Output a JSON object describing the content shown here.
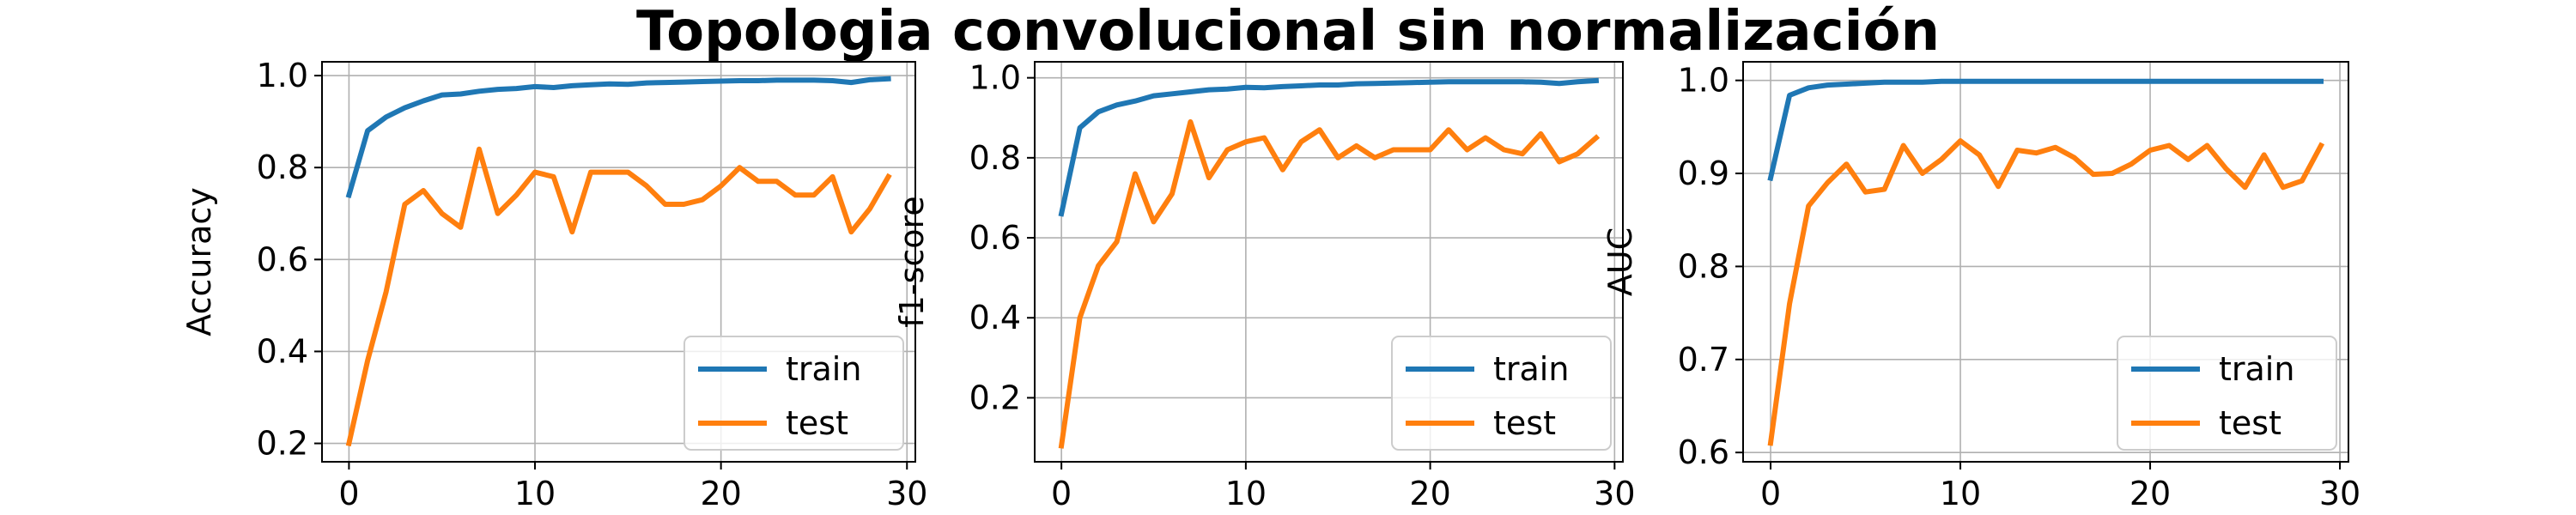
{
  "suptitle": "Topologia convolucional sin normalización",
  "colors": {
    "train": "#1f77b4",
    "test": "#ff7f0e",
    "grid": "#b0b0b0",
    "axis": "#000000"
  },
  "chart_data": [
    {
      "type": "line",
      "ylabel": "Accuracy",
      "xlim": [
        -1.45,
        30.45
      ],
      "ylim": [
        0.16,
        1.03
      ],
      "xticks": [
        0,
        10,
        20,
        30
      ],
      "yticks": [
        0.2,
        0.4,
        0.6,
        0.8,
        1.0
      ],
      "ytick_labels": [
        "0.2",
        "0.4",
        "0.6",
        "0.8",
        "1.0"
      ],
      "grid": true,
      "legend": {
        "position": "lower right",
        "entries": [
          "train",
          "test"
        ]
      },
      "x": [
        0,
        1,
        2,
        3,
        4,
        5,
        6,
        7,
        8,
        9,
        10,
        11,
        12,
        13,
        14,
        15,
        16,
        17,
        18,
        19,
        20,
        21,
        22,
        23,
        24,
        25,
        26,
        27,
        28,
        29
      ],
      "series": [
        {
          "name": "train",
          "color": "#1f77b4",
          "values": [
            0.74,
            0.88,
            0.91,
            0.93,
            0.945,
            0.958,
            0.96,
            0.966,
            0.97,
            0.972,
            0.976,
            0.974,
            0.978,
            0.98,
            0.982,
            0.981,
            0.984,
            0.985,
            0.986,
            0.987,
            0.988,
            0.989,
            0.989,
            0.99,
            0.99,
            0.99,
            0.989,
            0.985,
            0.991,
            0.993
          ]
        },
        {
          "name": "test",
          "color": "#ff7f0e",
          "values": [
            0.2,
            0.38,
            0.53,
            0.72,
            0.75,
            0.7,
            0.67,
            0.84,
            0.7,
            0.74,
            0.79,
            0.78,
            0.66,
            0.79,
            0.79,
            0.79,
            0.76,
            0.72,
            0.72,
            0.73,
            0.76,
            0.8,
            0.77,
            0.77,
            0.74,
            0.74,
            0.78,
            0.66,
            0.71,
            0.78
          ]
        }
      ]
    },
    {
      "type": "line",
      "ylabel": "f1-score",
      "xlim": [
        -1.45,
        30.45
      ],
      "ylim": [
        0.04,
        1.04
      ],
      "xticks": [
        0,
        10,
        20,
        30
      ],
      "yticks": [
        0.2,
        0.4,
        0.6,
        0.8,
        1.0
      ],
      "ytick_labels": [
        "0.2",
        "0.4",
        "0.6",
        "0.8",
        "1.0"
      ],
      "grid": true,
      "legend": {
        "position": "lower right",
        "entries": [
          "train",
          "test"
        ]
      },
      "x": [
        0,
        1,
        2,
        3,
        4,
        5,
        6,
        7,
        8,
        9,
        10,
        11,
        12,
        13,
        14,
        15,
        16,
        17,
        18,
        19,
        20,
        21,
        22,
        23,
        24,
        25,
        26,
        27,
        28,
        29
      ],
      "series": [
        {
          "name": "train",
          "color": "#1f77b4",
          "values": [
            0.66,
            0.875,
            0.915,
            0.932,
            0.942,
            0.955,
            0.96,
            0.965,
            0.97,
            0.972,
            0.976,
            0.975,
            0.978,
            0.98,
            0.982,
            0.982,
            0.985,
            0.986,
            0.987,
            0.988,
            0.989,
            0.99,
            0.99,
            0.99,
            0.99,
            0.99,
            0.989,
            0.986,
            0.99,
            0.993
          ]
        },
        {
          "name": "test",
          "color": "#ff7f0e",
          "values": [
            0.08,
            0.4,
            0.53,
            0.59,
            0.76,
            0.64,
            0.71,
            0.89,
            0.75,
            0.82,
            0.84,
            0.85,
            0.77,
            0.84,
            0.87,
            0.8,
            0.83,
            0.8,
            0.82,
            0.82,
            0.82,
            0.87,
            0.82,
            0.85,
            0.82,
            0.81,
            0.86,
            0.79,
            0.81,
            0.85
          ]
        }
      ]
    },
    {
      "type": "line",
      "ylabel": "AUC",
      "xlim": [
        -1.45,
        30.45
      ],
      "ylim": [
        0.59,
        1.02
      ],
      "xticks": [
        0,
        10,
        20,
        30
      ],
      "yticks": [
        0.6,
        0.7,
        0.8,
        0.9,
        1.0
      ],
      "ytick_labels": [
        "0.6",
        "0.7",
        "0.8",
        "0.9",
        "1.0"
      ],
      "grid": true,
      "legend": {
        "position": "lower right",
        "entries": [
          "train",
          "test"
        ]
      },
      "x": [
        0,
        1,
        2,
        3,
        4,
        5,
        6,
        7,
        8,
        9,
        10,
        11,
        12,
        13,
        14,
        15,
        16,
        17,
        18,
        19,
        20,
        21,
        22,
        23,
        24,
        25,
        26,
        27,
        28,
        29
      ],
      "series": [
        {
          "name": "train",
          "color": "#1f77b4",
          "values": [
            0.895,
            0.984,
            0.992,
            0.995,
            0.996,
            0.997,
            0.998,
            0.998,
            0.998,
            0.999,
            0.999,
            0.999,
            0.999,
            0.999,
            0.999,
            0.999,
            0.999,
            0.999,
            0.999,
            0.999,
            0.999,
            0.999,
            0.999,
            0.999,
            0.999,
            0.999,
            0.999,
            0.999,
            0.999,
            0.999
          ]
        },
        {
          "name": "test",
          "color": "#ff7f0e",
          "values": [
            0.61,
            0.76,
            0.865,
            0.89,
            0.91,
            0.88,
            0.883,
            0.93,
            0.9,
            0.915,
            0.935,
            0.92,
            0.886,
            0.925,
            0.922,
            0.928,
            0.917,
            0.899,
            0.9,
            0.91,
            0.925,
            0.93,
            0.915,
            0.93,
            0.905,
            0.885,
            0.92,
            0.885,
            0.892,
            0.93
          ]
        }
      ]
    }
  ]
}
